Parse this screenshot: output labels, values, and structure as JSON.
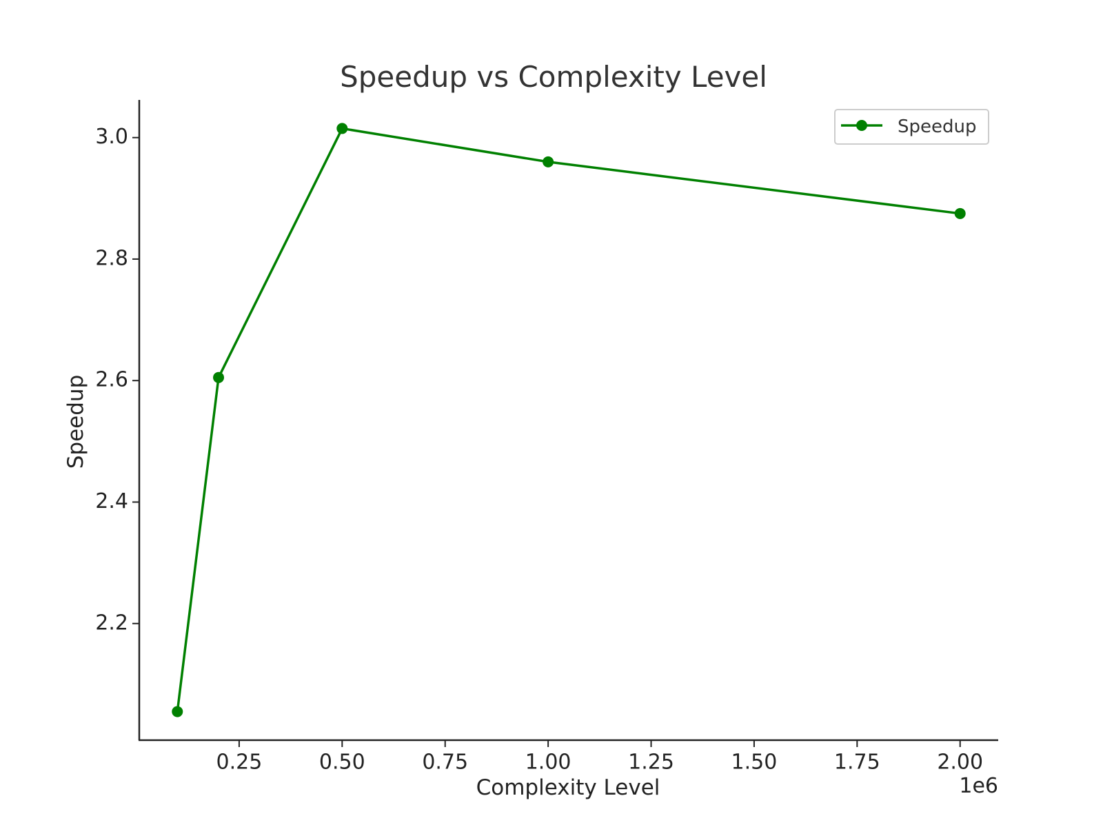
{
  "chart_data": {
    "type": "line",
    "title": "Speedup vs Complexity Level",
    "xlabel": "Complexity Level",
    "ylabel": "Speedup",
    "x_offset_label": "1e6",
    "x_scale": 1000000,
    "x": [
      100000,
      200000,
      500000,
      1000000,
      2000000
    ],
    "series": [
      {
        "name": "Speedup",
        "color": "#008000",
        "marker": "circle",
        "values": [
          2.055,
          2.605,
          3.015,
          2.96,
          2.875
        ]
      }
    ],
    "xlim": [
      7500,
      2092500
    ],
    "ylim": [
      2.008,
      3.062
    ],
    "x_ticks": [
      {
        "value": 250000,
        "label": "0.25"
      },
      {
        "value": 500000,
        "label": "0.50"
      },
      {
        "value": 750000,
        "label": "0.75"
      },
      {
        "value": 1000000,
        "label": "1.00"
      },
      {
        "value": 1250000,
        "label": "1.25"
      },
      {
        "value": 1500000,
        "label": "1.50"
      },
      {
        "value": 1750000,
        "label": "1.75"
      },
      {
        "value": 2000000,
        "label": "2.00"
      }
    ],
    "y_ticks": [
      {
        "value": 2.2,
        "label": "2.2"
      },
      {
        "value": 2.4,
        "label": "2.4"
      },
      {
        "value": 2.6,
        "label": "2.6"
      },
      {
        "value": 2.8,
        "label": "2.8"
      },
      {
        "value": 3.0,
        "label": "3.0"
      }
    ],
    "grid": false,
    "legend_position": "top-right"
  }
}
